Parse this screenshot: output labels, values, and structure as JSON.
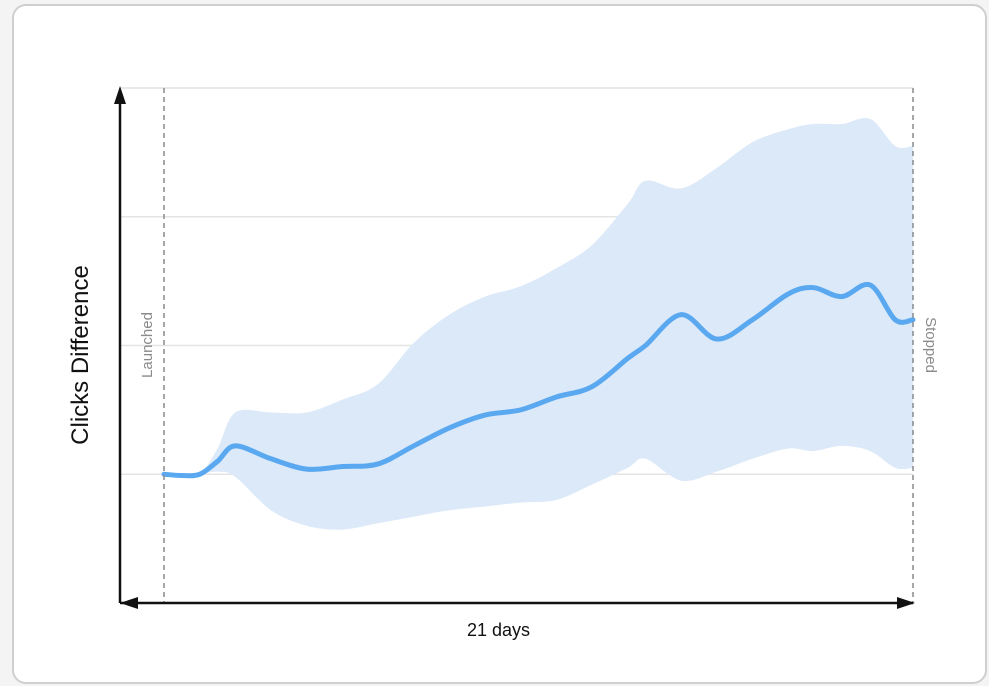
{
  "chart_data": {
    "type": "line",
    "title": "",
    "xlabel": "21 days",
    "ylabel": "Clicks Difference",
    "annotations": {
      "start": "Launched",
      "end": "Stopped"
    },
    "x_range": [
      0,
      21
    ],
    "ylim": [
      -1.0,
      3.0
    ],
    "grid": true,
    "series": [
      {
        "type": "line",
        "x": [
          0,
          0.5,
          1,
          1.5,
          2,
          3,
          4,
          5,
          6,
          7,
          8,
          9,
          10,
          11,
          12,
          13,
          13.5,
          14.5,
          15.5,
          16.5,
          17.5,
          18.2,
          19,
          19.8,
          20.5,
          21
        ],
        "values": [
          0,
          -0.01,
          0,
          0.1,
          0.22,
          0.12,
          0.04,
          0.06,
          0.08,
          0.22,
          0.36,
          0.46,
          0.5,
          0.6,
          0.68,
          0.9,
          1.0,
          1.24,
          1.05,
          1.2,
          1.4,
          1.45,
          1.38,
          1.47,
          1.2,
          1.2
        ],
        "color": "#5aa8f0"
      },
      {
        "type": "band",
        "x": [
          0,
          0.5,
          1,
          1.5,
          2,
          3,
          4,
          5,
          6,
          7,
          8,
          9,
          10,
          11,
          12,
          13,
          13.5,
          14.5,
          15.5,
          16.5,
          17.5,
          18.2,
          19,
          19.8,
          20.5,
          21
        ],
        "upper": [
          0,
          -0.01,
          0,
          0.2,
          0.48,
          0.48,
          0.48,
          0.58,
          0.7,
          1.02,
          1.24,
          1.38,
          1.46,
          1.6,
          1.78,
          2.1,
          2.28,
          2.22,
          2.38,
          2.58,
          2.68,
          2.72,
          2.72,
          2.76,
          2.55,
          2.55
        ],
        "lower": [
          0,
          -0.01,
          0,
          0.02,
          -0.02,
          -0.28,
          -0.4,
          -0.43,
          -0.38,
          -0.33,
          -0.28,
          -0.25,
          -0.22,
          -0.2,
          -0.08,
          0.05,
          0.12,
          -0.05,
          0.02,
          0.12,
          0.2,
          0.18,
          0.22,
          0.18,
          0.05,
          0.05
        ],
        "color": "#dce9f9"
      }
    ]
  }
}
